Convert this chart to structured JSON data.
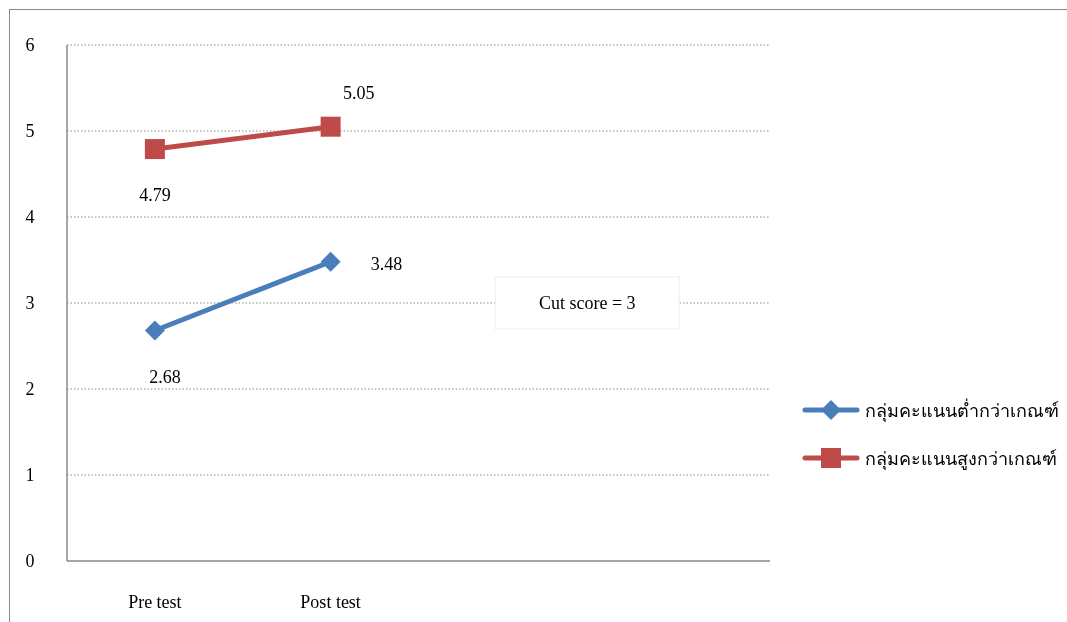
{
  "chart_data": {
    "type": "line",
    "categories": [
      "Pre test",
      "Post test",
      null,
      null
    ],
    "series": [
      {
        "name": "กลุ่มคะแนนต่ำกว่าเกณฑ์",
        "color": "#4a7ebb",
        "values": [
          2.68,
          3.48,
          null,
          null
        ],
        "marker": "diamond"
      },
      {
        "name": "กลุ่มคะแนนสูงกว่าเกณฑ์",
        "color": "#be4b48",
        "values": [
          4.79,
          5.05,
          null,
          null
        ],
        "marker": "square"
      }
    ],
    "ylim": [
      0,
      6
    ],
    "yticks": [
      0,
      1,
      2,
      3,
      4,
      5,
      6
    ],
    "grid": "y",
    "legend": "right",
    "data_labels": true,
    "annotations": [
      "Cut score = 3"
    ]
  }
}
